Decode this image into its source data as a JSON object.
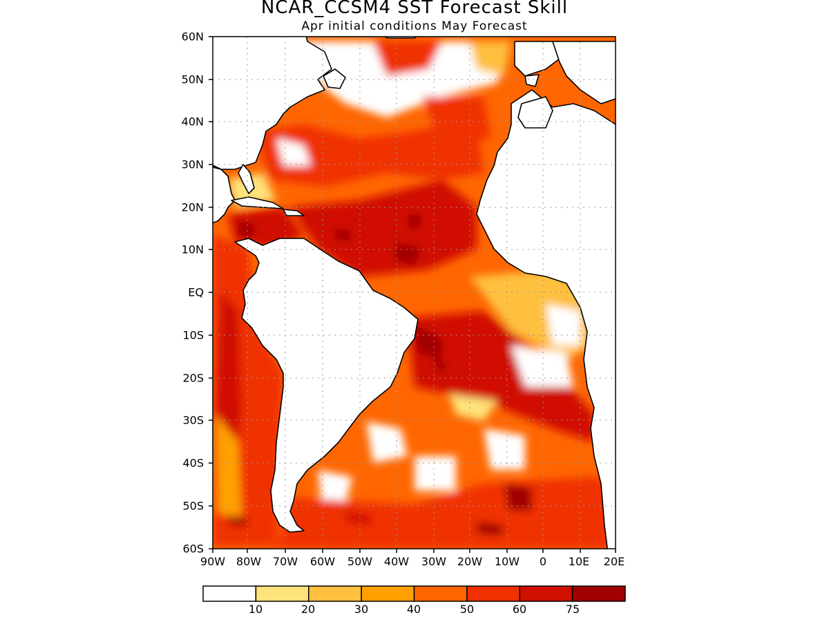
{
  "title": "NCAR_CCSM4 SST Forecast Skill",
  "subtitle": "Apr initial conditions  May Forecast",
  "lat_labels": [
    "60N",
    "50N",
    "40N",
    "30N",
    "20N",
    "10N",
    "EQ",
    "10S",
    "20S",
    "30S",
    "40S",
    "50S",
    "60S"
  ],
  "lon_labels": [
    "90W",
    "80W",
    "70W",
    "60W",
    "50W",
    "40W",
    "30W",
    "20W",
    "10W",
    "0",
    "10E",
    "20E"
  ],
  "colorbar": {
    "labels": [
      "10",
      "20",
      "30",
      "40",
      "50",
      "60",
      "75"
    ],
    "colors": [
      "#ffffff",
      "#ffe27a",
      "#ffc040",
      "#ffa000",
      "#ff6600",
      "#f03000",
      "#d01000",
      "#a00000"
    ]
  },
  "colors": {
    "land": "#ffffff",
    "coast": "#000000",
    "grid": "#999999"
  }
}
